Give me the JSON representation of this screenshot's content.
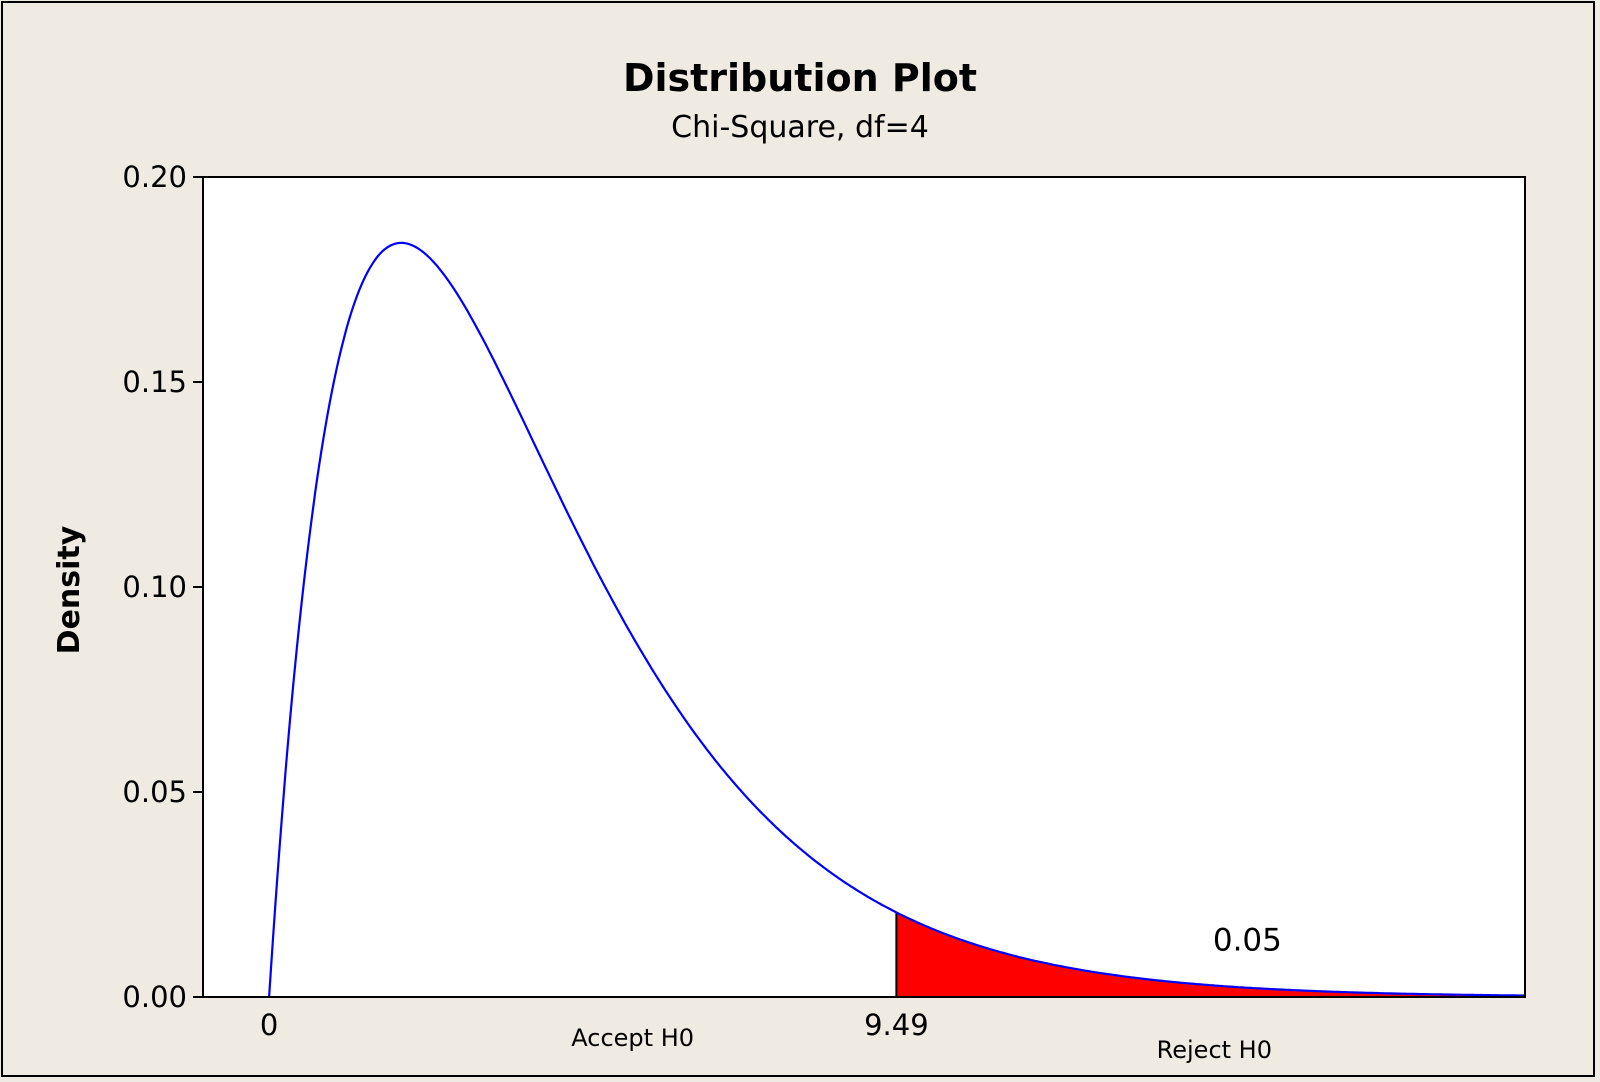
{
  "chart_data": {
    "type": "area",
    "title": "Distribution Plot",
    "subtitle": "Chi-Square, df=4",
    "ylabel": "Density",
    "xlabel": "",
    "distribution": "chi-square",
    "df": 4,
    "xlim": [
      -1,
      19
    ],
    "ylim": [
      0,
      0.2
    ],
    "y_ticks": [
      "0.00",
      "0.05",
      "0.10",
      "0.15",
      "0.20"
    ],
    "x_tick_labels": [
      {
        "value": 0,
        "label": "0"
      },
      {
        "value": 9.49,
        "label": "9.49"
      }
    ],
    "critical_value": 9.49,
    "shaded_region": {
      "from": 9.49,
      "to": 19,
      "area_label": "0.05",
      "color": "#ff0000"
    },
    "curve_color": "#0000ff",
    "annotations": [
      {
        "text": "Accept H0",
        "x": 5.5
      },
      {
        "text": "Reject H0",
        "x": 14.3
      }
    ],
    "grid": false,
    "legend": "none",
    "series": [
      {
        "x": [
          0,
          0.5,
          1,
          1.5,
          2,
          2.5,
          3,
          3.5,
          4,
          4.5,
          5,
          5.5,
          6,
          6.5,
          7,
          7.5,
          8,
          8.5,
          9,
          9.49,
          10,
          11,
          12,
          13,
          14,
          15,
          16,
          17,
          18,
          19
        ],
        "values": [
          0,
          0.0974,
          0.1516,
          0.1771,
          0.1839,
          0.1791,
          0.1673,
          0.1521,
          0.1353,
          0.1186,
          0.1026,
          0.0881,
          0.0747,
          0.0629,
          0.0528,
          0.0441,
          0.0366,
          0.0303,
          0.025,
          0.0207,
          0.0168,
          0.0112,
          0.0074,
          0.0049,
          0.0032,
          0.0021,
          0.0013,
          0.0009,
          0.0006,
          0.0004
        ]
      }
    ]
  }
}
